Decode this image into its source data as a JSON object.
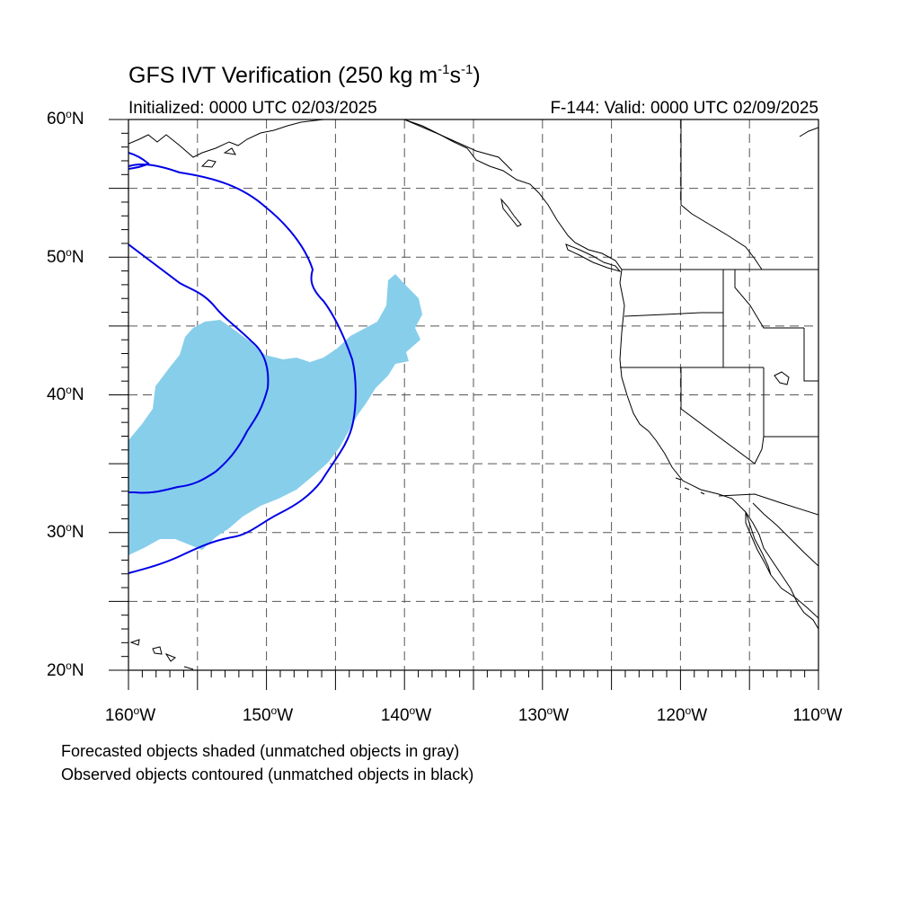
{
  "header": {
    "title_main": "GFS IVT Verification (250 kg m",
    "title_sup1": "-1",
    "title_mid": "s",
    "title_sup2": "-1",
    "title_end": ")",
    "initialized": "Initialized: 0000 UTC 02/03/2025",
    "valid": "F-144: Valid: 0000 UTC 02/09/2025"
  },
  "axes": {
    "lat_labels": [
      "60",
      "50",
      "40",
      "30",
      "20"
    ],
    "lat_suffix": "N",
    "lon_labels": [
      "160",
      "150",
      "140",
      "130",
      "120",
      "110"
    ],
    "lon_suffix": "W",
    "degree_symbol": "o"
  },
  "legend": {
    "line1": "Forecasted objects shaded (unmatched objects in gray)",
    "line2": "Observed objects contoured (unmatched objects in black)"
  },
  "map": {
    "lon_range": [
      -160,
      -110
    ],
    "lat_range": [
      20,
      60
    ],
    "grid": true,
    "colors": {
      "forecast_fill": "#87ceeb",
      "observed_contour": "#0000e6",
      "coastline": "#000000",
      "gridline": "#555555"
    }
  }
}
